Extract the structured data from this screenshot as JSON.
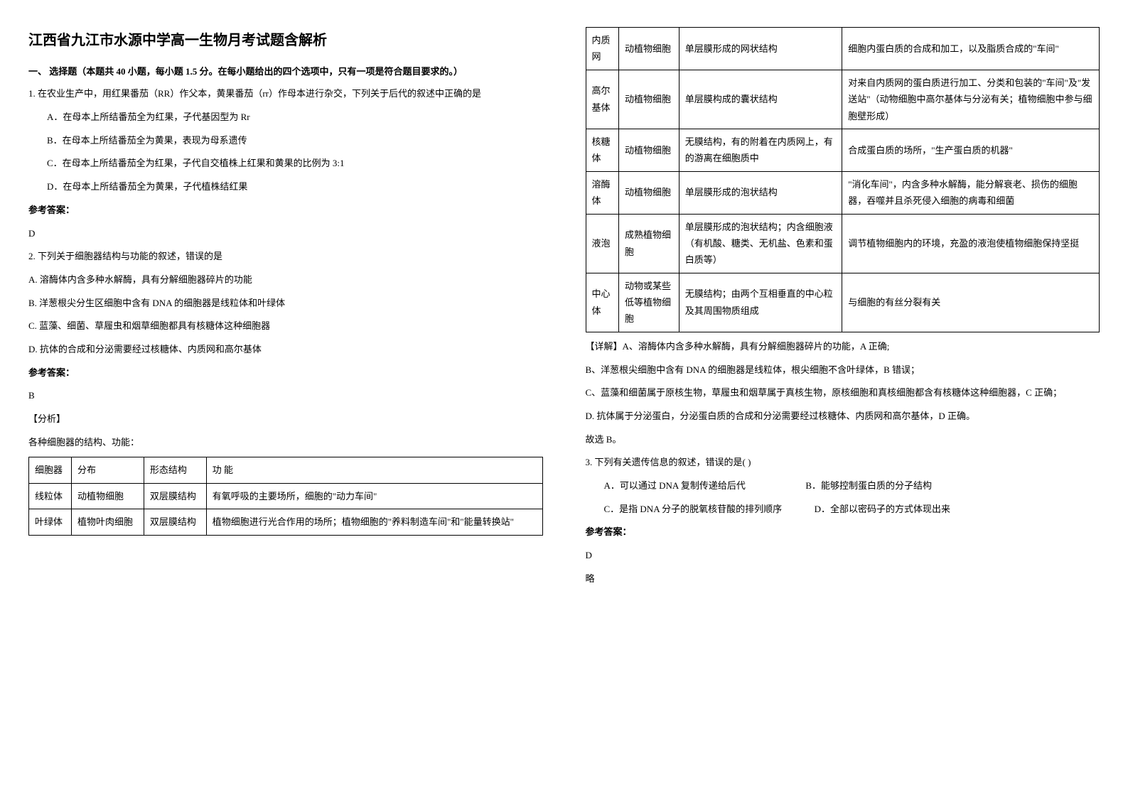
{
  "title": "江西省九江市水源中学高一生物月考试题含解析",
  "section1_head": "一、 选择题（本题共 40 小题，每小题 1.5 分。在每小题给出的四个选项中，只有一项是符合题目要求的。）",
  "q1": {
    "stem": "1. 在农业生产中，用红果番茄（RR）作父本，黄果番茄（rr）作母本进行杂交，下列关于后代的叙述中正确的是",
    "A": "A．在母本上所结番茄全为红果，子代基因型为 Rr",
    "B": "B．在母本上所结番茄全为黄果，表现为母系遗传",
    "C": "C．在母本上所结番茄全为红果，子代自交植株上红果和黄果的比例为 3:1",
    "D": "D．在母本上所结番茄全为黄果，子代植株结红果",
    "ans_label": "参考答案：",
    "ans": "D"
  },
  "q2": {
    "stem": "2. 下列关于细胞器结构与功能的叙述，错误的是",
    "A": "A.  溶酶体内含多种水解酶，具有分解细胞器碎片的功能",
    "B": "B.  洋葱根尖分生区细胞中含有 DNA 的细胞器是线粒体和叶绿体",
    "C": "C.  蓝藻、细菌、草履虫和烟草细胞都具有核糖体这种细胞器",
    "D": "D.  抗体的合成和分泌需要经过核糖体、内质网和高尔基体",
    "ans_label": "参考答案：",
    "ans": "B",
    "analysis_label": "【分析】",
    "analysis_intro": "各种细胞器的结构、功能："
  },
  "table1": {
    "headers": [
      "细胞器",
      "分布",
      "形态结构",
      "功  能"
    ],
    "rows": [
      [
        "线粒体",
        "动植物细胞",
        "双层膜结构",
        "有氧呼吸的主要场所，细胞的\"动力车间\""
      ],
      [
        "叶绿体",
        "植物叶肉细胞",
        "双层膜结构",
        "植物细胞进行光合作用的场所；植物细胞的\"养料制造车间\"和\"能量转换站\""
      ]
    ]
  },
  "table2": {
    "rows": [
      [
        "内质网",
        "动植物细胞",
        "单层膜形成的网状结构",
        "细胞内蛋白质的合成和加工，以及脂质合成的\"车间\""
      ],
      [
        "高尔基体",
        "动植物细胞",
        "单层膜构成的囊状结构",
        "对来自内质网的蛋白质进行加工、分类和包装的\"车间\"及\"发送站\"（动物细胞中高尔基体与分泌有关；植物细胞中参与细胞壁形成）"
      ],
      [
        "核糖体",
        "动植物细胞",
        "无膜结构，有的附着在内质网上，有的游离在细胞质中",
        "合成蛋白质的场所，\"生产蛋白质的机器\""
      ],
      [
        "溶酶体",
        "动植物细胞",
        "单层膜形成的泡状结构",
        "\"消化车间\"，内含多种水解酶，能分解衰老、损伤的细胞器，吞噬并且杀死侵入细胞的病毒和细菌"
      ],
      [
        "液泡",
        "成熟植物细胞",
        "单层膜形成的泡状结构；内含细胞液（有机酸、糖类、无机盐、色素和蛋白质等）",
        "调节植物细胞内的环境，充盈的液泡使植物细胞保持坚挺"
      ],
      [
        "中心体",
        "动物或某些低等植物细胞",
        "无膜结构；由两个互相垂直的中心粒及其周围物质组成",
        "与细胞的有丝分裂有关"
      ]
    ]
  },
  "q2_detail": {
    "A": "【详解】A、溶酶体内含多种水解酶，具有分解细胞器碎片的功能，A 正确;",
    "B": "B、洋葱根尖细胞中含有 DNA 的细胞器是线粒体，根尖细胞不含叶绿体，B 错误；",
    "C": "C、蓝藻和细菌属于原核生物，草履虫和烟草属于真核生物，原核细胞和真核细胞都含有核糖体这种细胞器，C 正确；",
    "D": "D. 抗体属于分泌蛋白，分泌蛋白质的合成和分泌需要经过核糖体、内质网和高尔基体，D 正确。",
    "conclude": "故选 B。"
  },
  "q3": {
    "stem": "3. 下列有关遗传信息的叙述，错误的是(   )",
    "A": "A．可以通过 DNA 复制传递给后代",
    "B": "B．能够控制蛋白质的分子结构",
    "C": "C．是指 DNA 分子的脱氧核苷酸的排列顺序",
    "D": "D．全部以密码子的方式体现出来",
    "ans_label": "参考答案：",
    "ans": "D",
    "note": "略"
  }
}
